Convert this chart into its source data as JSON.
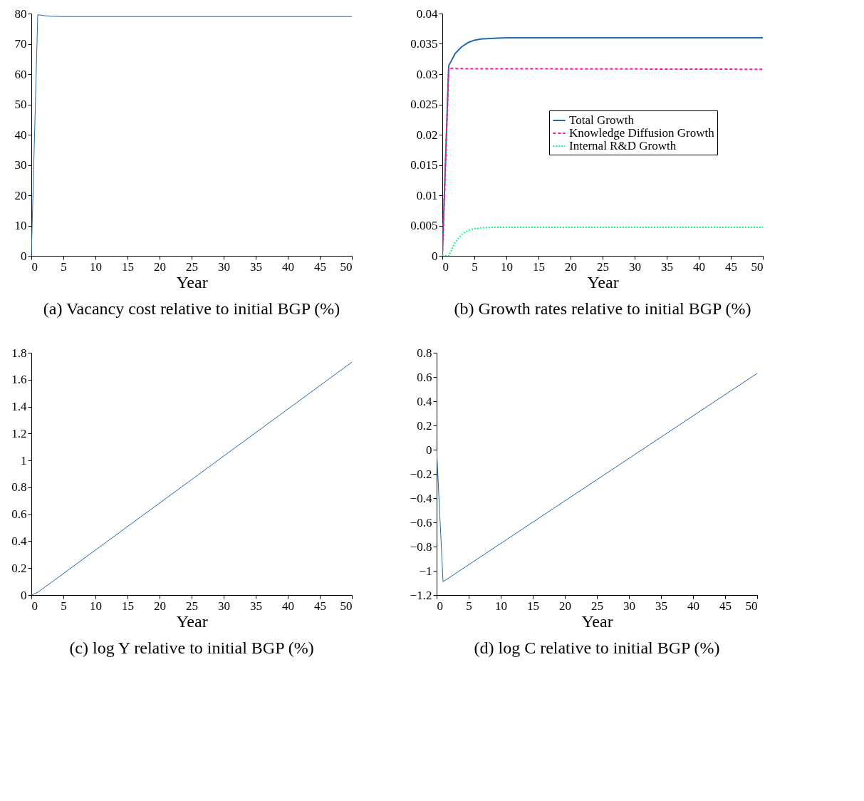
{
  "chart_data": [
    {
      "type": "line",
      "title": "(a) Vacancy cost relative to initial BGP (%)",
      "xlabel": "Year",
      "xlim": [
        0,
        50
      ],
      "xticks": [
        0,
        5,
        10,
        15,
        20,
        25,
        30,
        35,
        40,
        45,
        50
      ],
      "ylim": [
        0,
        80
      ],
      "yticks": [
        0,
        10,
        20,
        30,
        40,
        50,
        60,
        70,
        80
      ],
      "grid": false,
      "series": [
        {
          "color": "#2369a8",
          "line_style": "solid",
          "x": [
            0,
            1,
            2,
            3,
            5,
            10,
            50
          ],
          "values": [
            0,
            79.6,
            79.3,
            79.1,
            79.0,
            79.0,
            79.0
          ]
        }
      ]
    },
    {
      "type": "line",
      "title": "(b) Growth rates relative to initial BGP (%)",
      "xlabel": "Year",
      "xlim": [
        0,
        50
      ],
      "xticks": [
        0,
        5,
        10,
        15,
        20,
        25,
        30,
        35,
        40,
        45,
        50
      ],
      "ylim": [
        0,
        0.04
      ],
      "yticks": [
        0,
        0.005,
        0.01,
        0.015,
        0.02,
        0.025,
        0.03,
        0.035,
        0.04
      ],
      "grid": false,
      "legend": "right",
      "series": [
        {
          "name": "Total Growth",
          "color": "#2369a8",
          "line_style": "solid",
          "x": [
            0,
            1,
            2,
            3,
            4,
            5,
            6,
            8,
            10,
            50
          ],
          "values": [
            0,
            0.0314,
            0.0334,
            0.0345,
            0.0352,
            0.0356,
            0.0358,
            0.0359,
            0.036,
            0.036
          ]
        },
        {
          "name": "Knowledge Diffusion Growth",
          "color": "#ff1493",
          "line_style": "dashed",
          "x": [
            0,
            1,
            2,
            50
          ],
          "values": [
            0,
            0.031,
            0.0309,
            0.0308
          ]
        },
        {
          "name": "Internal R&D Growth",
          "color": "#00ff7f",
          "line_style": "dotted",
          "x": [
            0,
            1,
            2,
            3,
            4,
            5,
            6,
            8,
            50
          ],
          "values": [
            0,
            0,
            0.0022,
            0.0035,
            0.0042,
            0.0045,
            0.0046,
            0.0047,
            0.0047
          ]
        }
      ]
    },
    {
      "type": "line",
      "title": "(c) log Y relative to initial BGP (%)",
      "xlabel": "Year",
      "xlim": [
        0,
        50
      ],
      "xticks": [
        0,
        5,
        10,
        15,
        20,
        25,
        30,
        35,
        40,
        45,
        50
      ],
      "ylim": [
        0,
        1.8
      ],
      "yticks": [
        0,
        0.2,
        0.4,
        0.6,
        0.8,
        1,
        1.2,
        1.4,
        1.6,
        1.8
      ],
      "grid": false,
      "series": [
        {
          "color": "#2369a8",
          "line_style": "solid",
          "x": [
            0,
            1,
            2,
            3,
            50
          ],
          "values": [
            0,
            0.02,
            0.055,
            0.09,
            1.73
          ]
        }
      ]
    },
    {
      "type": "line",
      "title": "(d) log C relative to initial BGP (%)",
      "xlabel": "Year",
      "xlim": [
        0,
        50
      ],
      "xticks": [
        0,
        5,
        10,
        15,
        20,
        25,
        30,
        35,
        40,
        45,
        50
      ],
      "ylim": [
        -1.2,
        0.8
      ],
      "yticks": [
        -1.2,
        -1,
        -0.8,
        -0.6,
        -0.4,
        -0.2,
        0,
        0.2,
        0.4,
        0.6,
        0.8
      ],
      "grid": false,
      "series": [
        {
          "color": "#2369a8",
          "line_style": "solid",
          "x": [
            0,
            1,
            50
          ],
          "values": [
            0,
            -1.09,
            0.63
          ]
        }
      ]
    }
  ]
}
